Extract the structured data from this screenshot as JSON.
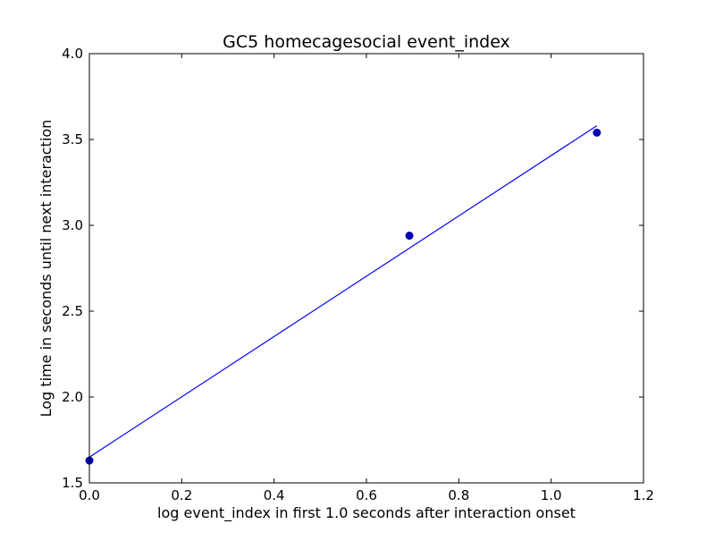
{
  "chart_data": {
    "type": "scatter",
    "title": "GC5 homecagesocial event_index",
    "xlabel": "log event_index in first 1.0 seconds after interaction onset",
    "ylabel": "Log time in seconds until next interaction",
    "xlim": [
      0.0,
      1.2
    ],
    "ylim": [
      1.5,
      4.0
    ],
    "x_ticks": [
      "0.0",
      "0.2",
      "0.4",
      "0.6",
      "0.8",
      "1.0",
      "1.2"
    ],
    "y_ticks": [
      "1.5",
      "2.0",
      "2.5",
      "3.0",
      "3.5",
      "4.0"
    ],
    "grid": false,
    "points": {
      "x": [
        0.0,
        0.693,
        1.099
      ],
      "y": [
        1.63,
        2.94,
        3.54
      ]
    },
    "fit_line": {
      "x": [
        0.0,
        1.099
      ],
      "y": [
        1.65,
        3.58
      ]
    },
    "colors": {
      "points": "#0000bf",
      "fit_line": "#0000ff"
    }
  }
}
